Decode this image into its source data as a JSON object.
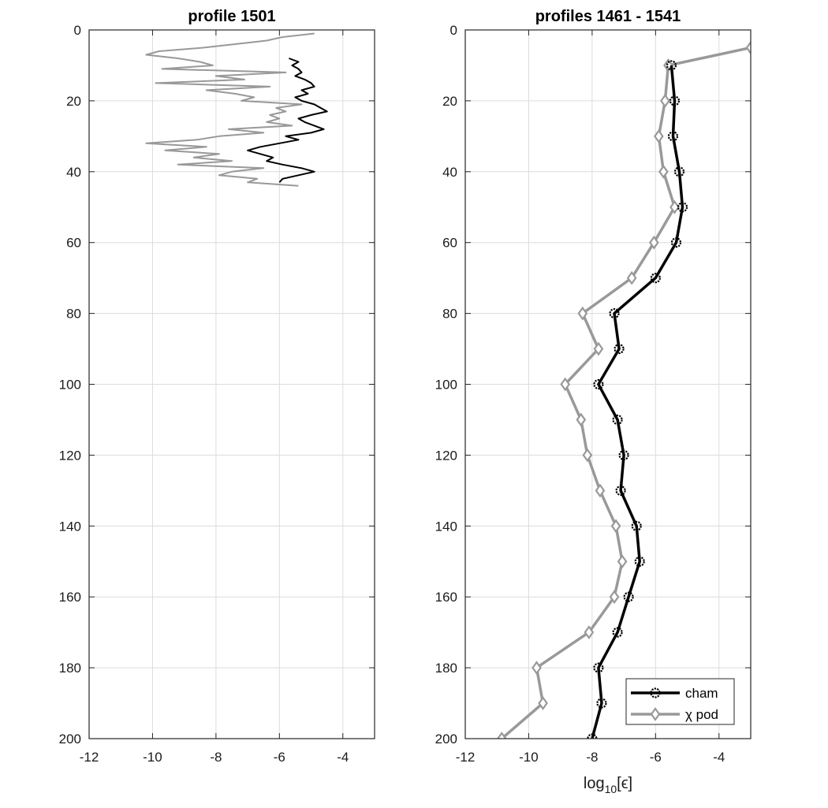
{
  "chart_data": [
    {
      "type": "line",
      "title": "profile 1501",
      "xlabel": "",
      "ylabel": "",
      "xlim": [
        -12,
        -3
      ],
      "ylim": [
        0,
        200
      ],
      "y_reversed": true,
      "grid": true,
      "xticks": [
        "-12",
        "-10",
        "-8",
        "-6",
        "-4"
      ],
      "yticks": [
        "0",
        "20",
        "40",
        "60",
        "80",
        "100",
        "120",
        "140",
        "160",
        "180",
        "200"
      ],
      "colors": {
        "cham": "#000000",
        "chipod": "#999999"
      },
      "series": [
        {
          "key": "cham",
          "depth": [
            8,
            9,
            10,
            11,
            12,
            13,
            14,
            15,
            16,
            17,
            18,
            19,
            20,
            21,
            22,
            23,
            24,
            25,
            26,
            27,
            28,
            29,
            30,
            31,
            32,
            33,
            34,
            35,
            36,
            37,
            38,
            39,
            40,
            41,
            42,
            43
          ],
          "log_eps": [
            -5.7,
            -5.4,
            -5.6,
            -5.4,
            -5.3,
            -5.5,
            -5.2,
            -5.0,
            -4.9,
            -5.3,
            -5.1,
            -5.5,
            -5.3,
            -4.9,
            -4.7,
            -4.5,
            -5.0,
            -5.4,
            -5.2,
            -4.9,
            -4.6,
            -5.0,
            -5.8,
            -5.4,
            -6.0,
            -6.6,
            -7.0,
            -6.6,
            -6.2,
            -6.4,
            -5.9,
            -5.3,
            -4.9,
            -5.4,
            -5.9,
            -6.0
          ]
        },
        {
          "key": "chipod",
          "depth": [
            1,
            2,
            3,
            4,
            5,
            6,
            7,
            8,
            9,
            10,
            11,
            12,
            13,
            14,
            15,
            16,
            17,
            18,
            19,
            20,
            21,
            22,
            23,
            24,
            25,
            26,
            27,
            28,
            29,
            30,
            31,
            32,
            33,
            34,
            35,
            36,
            37,
            38,
            39,
            40,
            41,
            42,
            43,
            44
          ],
          "log_eps": [
            -4.9,
            -5.9,
            -6.4,
            -7.4,
            -8.4,
            -9.8,
            -10.2,
            -9.2,
            -8.5,
            -8.1,
            -9.7,
            -5.8,
            -8.0,
            -7.1,
            -9.9,
            -6.3,
            -8.3,
            -7.4,
            -6.8,
            -7.2,
            -5.3,
            -6.1,
            -5.8,
            -6.3,
            -6.0,
            -6.4,
            -5.6,
            -7.6,
            -6.5,
            -7.9,
            -8.6,
            -10.2,
            -8.3,
            -9.6,
            -7.9,
            -8.7,
            -7.5,
            -9.2,
            -6.5,
            -7.5,
            -7.9,
            -6.7,
            -7.0,
            -5.4
          ]
        }
      ]
    },
    {
      "type": "line",
      "title": "profiles 1461 - 1541",
      "xlabel": "log",
      "xlabel_sub": "10",
      "xlabel_arg": "[ϵ]",
      "ylabel": "",
      "xlim": [
        -12,
        -3
      ],
      "ylim": [
        0,
        200
      ],
      "y_reversed": true,
      "grid": true,
      "legend_position": "bottom-right",
      "xticks": [
        "-12",
        "-10",
        "-8",
        "-6",
        "-4"
      ],
      "yticks": [
        "0",
        "20",
        "40",
        "60",
        "80",
        "100",
        "120",
        "140",
        "160",
        "180",
        "200"
      ],
      "colors": {
        "cham": "#000000",
        "chipod": "#999999"
      },
      "series": [
        {
          "key": "cham",
          "name": "cham",
          "marker": "circle",
          "depth": [
            10,
            20,
            30,
            40,
            50,
            60,
            70,
            80,
            90,
            100,
            110,
            120,
            130,
            140,
            150,
            160,
            170,
            180,
            190,
            200
          ],
          "log_eps": [
            -5.5,
            -5.4,
            -5.45,
            -5.25,
            -5.15,
            -5.35,
            -6.0,
            -7.3,
            -7.15,
            -7.8,
            -7.2,
            -7.0,
            -7.1,
            -6.6,
            -6.5,
            -6.85,
            -7.2,
            -7.8,
            -7.7,
            -8.0
          ]
        },
        {
          "key": "chipod",
          "name": "χ pod",
          "marker": "diamond",
          "depth": [
            5,
            10,
            20,
            30,
            40,
            50,
            60,
            70,
            80,
            90,
            100,
            110,
            120,
            130,
            140,
            150,
            160,
            170,
            180,
            190,
            200
          ],
          "log_eps": [
            -3.0,
            -5.6,
            -5.7,
            -5.9,
            -5.75,
            -5.4,
            -6.05,
            -6.75,
            -8.3,
            -7.8,
            -8.85,
            -8.35,
            -8.15,
            -7.75,
            -7.25,
            -7.05,
            -7.3,
            -8.1,
            -9.75,
            -9.55,
            -10.85
          ]
        }
      ]
    }
  ]
}
